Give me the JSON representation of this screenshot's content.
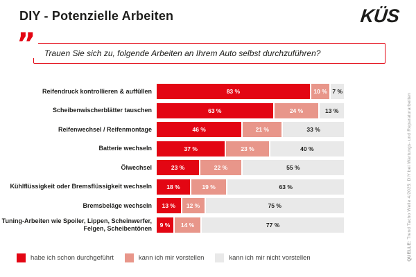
{
  "header": {
    "title": "DIY - Potenzielle Arbeiten",
    "logo_text": "KÜS"
  },
  "question": {
    "quote_glyph": "”",
    "text": "Trauen Sie sich zu, folgende Arbeiten an Ihrem Auto selbst durchzuführen?"
  },
  "chart_data": {
    "type": "bar",
    "orientation": "horizontal",
    "stacked": true,
    "value_suffix": " %",
    "xlim": [
      0,
      100
    ],
    "grid": false,
    "legend_position": "bottom",
    "categories": [
      "Reifendruck kontrollieren & auffüllen",
      "Scheibenwischerblätter tauschen",
      "Reifenwechsel / Reifenmontage",
      "Batterie wechseln",
      "Ölwechsel",
      "Kühlflüssigkeit oder Bremsflüssigkeit wechseln",
      "Bremsbeläge wechseln",
      "Tuning-Arbeiten wie Spoiler, Lippen, Scheinwerfer, Felgen, Scheibentönen"
    ],
    "series": [
      {
        "name": "habe ich schon durchgeführt",
        "color": "#e30613",
        "label_color": "#ffffff",
        "values": [
          83,
          63,
          46,
          37,
          23,
          18,
          13,
          9
        ]
      },
      {
        "name": "kann ich mir vorstellen",
        "color": "#e8968a",
        "label_color": "#ffffff",
        "values": [
          10,
          24,
          21,
          23,
          22,
          19,
          12,
          14
        ]
      },
      {
        "name": "kann ich mir nicht vorstellen",
        "color": "#e9e9e9",
        "label_color": "#1d1d1b",
        "values": [
          7,
          13,
          33,
          40,
          55,
          63,
          75,
          77
        ]
      }
    ]
  },
  "source": {
    "label": "QUELLE:",
    "text": "Trend Tacho Welle 4/2025: DIY bei Wartungs- und Reparaturarbeiten"
  },
  "colors": {
    "brand_red": "#e30613",
    "salmon": "#e8968a",
    "light_gray": "#e9e9e9",
    "text_dark": "#1d1d1b",
    "source_gray": "#9d9d9c"
  }
}
